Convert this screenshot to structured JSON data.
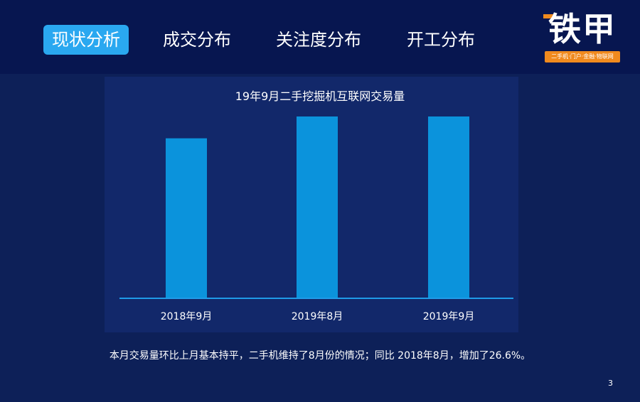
{
  "nav": {
    "tabs": [
      {
        "label": "现状分析",
        "active": true
      },
      {
        "label": "成交分布",
        "active": false
      },
      {
        "label": "关注度分布",
        "active": false
      },
      {
        "label": "开工分布",
        "active": false
      }
    ]
  },
  "logo": {
    "text": "铁甲",
    "tagline": "二手机·门户·金融·物联网"
  },
  "chart_data": {
    "type": "bar",
    "title": "19年9月二手挖掘机互联网交易量",
    "categories": [
      "2018年9月",
      "2019年8月",
      "2019年9月"
    ],
    "values": [
      88,
      100,
      100
    ],
    "ylim": [
      0,
      100
    ],
    "grid": false,
    "color": "#0b93dc"
  },
  "caption": "本月交易量环比上月基本持平，二手机维持了8月份的情况；同比 2018年8月，增加了26.6%。",
  "page_number": "3"
}
